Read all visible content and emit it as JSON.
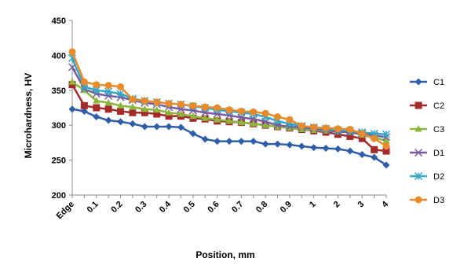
{
  "chart_data": {
    "type": "line",
    "title": "",
    "xlabel": "Position, mm",
    "ylabel": "Microhardness, HV",
    "ylim": [
      200,
      450
    ],
    "yticks": [
      200,
      250,
      300,
      350,
      400,
      450
    ],
    "grid": false,
    "legend_position": "right",
    "categories": [
      "Edge",
      "",
      "0.1",
      "",
      "0.2",
      "",
      "0.3",
      "",
      "0.4",
      "",
      "0.5",
      "",
      "0.6",
      "",
      "0.7",
      "",
      "0.8",
      "",
      "0.9",
      "",
      "1",
      "",
      "2",
      "",
      "3",
      "",
      "4"
    ],
    "series": [
      {
        "name": "C1",
        "color": "#2E5EA8",
        "marker": "diamond",
        "values": [
          323,
          320,
          312,
          307,
          305,
          302,
          298,
          298,
          298,
          297,
          288,
          280,
          277,
          277,
          277,
          277,
          273,
          273,
          272,
          270,
          268,
          267,
          266,
          263,
          258,
          254,
          243
        ]
      },
      {
        "name": "C2",
        "color": "#A52A2A",
        "marker": "square",
        "values": [
          358,
          328,
          325,
          323,
          320,
          318,
          318,
          316,
          313,
          313,
          310,
          309,
          306,
          305,
          304,
          302,
          300,
          298,
          296,
          294,
          292,
          290,
          287,
          284,
          281,
          265,
          263
        ]
      },
      {
        "name": "C3",
        "color": "#8DB63C",
        "marker": "triangle",
        "values": [
          362,
          350,
          335,
          332,
          328,
          326,
          323,
          322,
          318,
          316,
          313,
          310,
          308,
          306,
          304,
          302,
          300,
          298,
          296,
          294,
          293,
          292,
          291,
          290,
          286,
          282,
          278
        ]
      },
      {
        "name": "D1",
        "color": "#7B5A9E",
        "marker": "x",
        "values": [
          383,
          352,
          345,
          342,
          340,
          336,
          332,
          330,
          326,
          323,
          321,
          318,
          316,
          314,
          311,
          309,
          305,
          300,
          298,
          297,
          295,
          293,
          291,
          290,
          288,
          285,
          283
        ]
      },
      {
        "name": "D2",
        "color": "#33A7C4",
        "marker": "star",
        "values": [
          396,
          355,
          350,
          348,
          345,
          338,
          335,
          333,
          331,
          330,
          327,
          325,
          322,
          320,
          318,
          316,
          312,
          306,
          302,
          299,
          297,
          295,
          293,
          292,
          290,
          288,
          287
        ]
      },
      {
        "name": "D3",
        "color": "#E98B2A",
        "marker": "circle",
        "values": [
          405,
          362,
          358,
          357,
          355,
          337,
          335,
          333,
          331,
          330,
          328,
          326,
          325,
          322,
          320,
          319,
          317,
          312,
          308,
          299,
          297,
          296,
          295,
          294,
          288,
          281,
          270
        ]
      }
    ]
  }
}
